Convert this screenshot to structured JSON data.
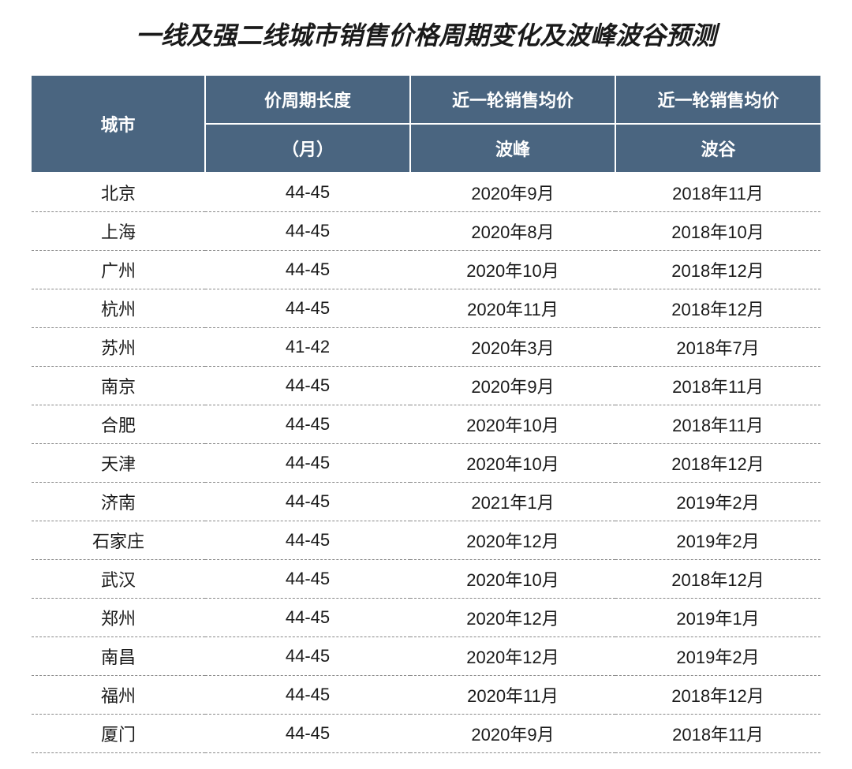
{
  "title": "一线及强二线城市销售价格周期变化及波峰波谷预测",
  "table": {
    "header_bg": "#4a6580",
    "header_fg": "#ffffff",
    "row_border": "#888888",
    "text_color": "#1a1a1a",
    "columns": {
      "city": {
        "top": "城市",
        "sub": ""
      },
      "cycle": {
        "top": "价周期长度",
        "sub": "（月）"
      },
      "peak": {
        "top": "近一轮销售均价",
        "sub": "波峰"
      },
      "trough": {
        "top": "近一轮销售均价",
        "sub": "波谷"
      }
    },
    "rows": [
      {
        "city": "北京",
        "cycle": "44-45",
        "peak": "2020年9月",
        "trough": "2018年11月"
      },
      {
        "city": "上海",
        "cycle": "44-45",
        "peak": "2020年8月",
        "trough": "2018年10月"
      },
      {
        "city": "广州",
        "cycle": "44-45",
        "peak": "2020年10月",
        "trough": "2018年12月"
      },
      {
        "city": "杭州",
        "cycle": "44-45",
        "peak": "2020年11月",
        "trough": "2018年12月"
      },
      {
        "city": "苏州",
        "cycle": "41-42",
        "peak": "2020年3月",
        "trough": "2018年7月"
      },
      {
        "city": "南京",
        "cycle": "44-45",
        "peak": "2020年9月",
        "trough": "2018年11月"
      },
      {
        "city": "合肥",
        "cycle": "44-45",
        "peak": "2020年10月",
        "trough": "2018年11月"
      },
      {
        "city": "天津",
        "cycle": "44-45",
        "peak": "2020年10月",
        "trough": "2018年12月"
      },
      {
        "city": "济南",
        "cycle": "44-45",
        "peak": "2021年1月",
        "trough": "2019年2月"
      },
      {
        "city": "石家庄",
        "cycle": "44-45",
        "peak": "2020年12月",
        "trough": "2019年2月"
      },
      {
        "city": "武汉",
        "cycle": "44-45",
        "peak": "2020年10月",
        "trough": "2018年12月"
      },
      {
        "city": "郑州",
        "cycle": "44-45",
        "peak": "2020年12月",
        "trough": "2019年1月"
      },
      {
        "city": "南昌",
        "cycle": "44-45",
        "peak": "2020年12月",
        "trough": "2019年2月"
      },
      {
        "city": "福州",
        "cycle": "44-45",
        "peak": "2020年11月",
        "trough": "2018年12月"
      },
      {
        "city": "厦门",
        "cycle": "44-45",
        "peak": "2020年9月",
        "trough": "2018年11月"
      }
    ]
  }
}
